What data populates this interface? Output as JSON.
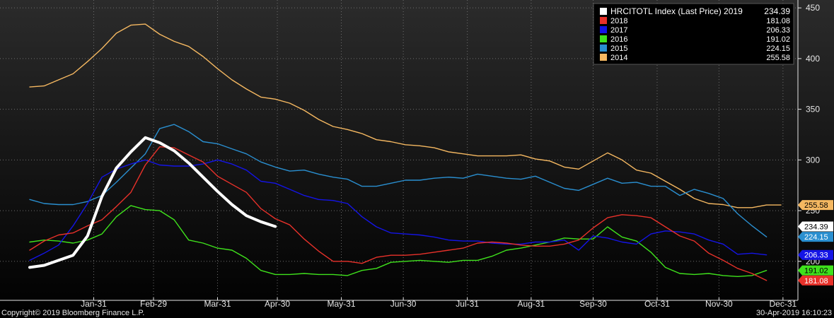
{
  "footer": {
    "copyright": "Copyright© 2019 Bloomberg Finance L.P.",
    "timestamp": "30-Apr-2019 16:10:23"
  },
  "legend": {
    "header": "HRCITOTL Index (Last Price)",
    "placement": "top-right"
  },
  "colors": {
    "background_top": "#2b2b2b",
    "background_bottom": "#000000",
    "grid": "#6e6e6e",
    "axis_text": "#e6e6e6",
    "legend_bg": "#000000"
  },
  "chart_data": {
    "type": "line",
    "grid": true,
    "ylim": [
      165,
      455
    ],
    "y_ticks": [
      200,
      250,
      300,
      350,
      400,
      450
    ],
    "y_tick_labels": [
      "200",
      "250",
      "300",
      "350",
      "400",
      "450"
    ],
    "x_range": [
      0,
      52
    ],
    "x_ticks": [
      4.43,
      8.57,
      13,
      17.14,
      21.57,
      25.86,
      30.29,
      34.71,
      39,
      43.43,
      47.71,
      52.14
    ],
    "x_tick_labels": [
      "Jan-31",
      "Feb-29",
      "Mar-31",
      "Apr-30",
      "May-31",
      "Jun-30",
      "Jul-31",
      "Aug-31",
      "Sep-30",
      "Oct-31",
      "Nov-30",
      "Dec-31"
    ],
    "series": [
      {
        "name": "2014",
        "color": "#f5b861",
        "last_value": "255.58",
        "width": 1.4,
        "x": [
          0,
          1,
          2,
          3,
          4,
          5,
          6,
          7,
          8,
          9,
          10,
          11,
          12,
          13,
          14,
          15,
          16,
          17,
          18,
          19,
          20,
          21,
          22,
          23,
          24,
          25,
          26,
          27,
          28,
          29,
          30,
          31,
          32,
          33,
          34,
          35,
          36,
          37,
          38,
          39,
          40,
          41,
          42,
          43,
          44,
          45,
          46,
          47,
          48,
          49,
          50,
          51,
          52
        ],
        "y": [
          372,
          373,
          379,
          385,
          397,
          410,
          425,
          433,
          434,
          424,
          417,
          412,
          402,
          390,
          379,
          370,
          362,
          360,
          356,
          349,
          340,
          333,
          330,
          326,
          320,
          318,
          315,
          314,
          312,
          308,
          306,
          304,
          304,
          304,
          305,
          301,
          299,
          293,
          291,
          299,
          307,
          300,
          290,
          287,
          279,
          271,
          262,
          257,
          256,
          253,
          253,
          255.58,
          255.58
        ]
      },
      {
        "name": "2015",
        "color": "#2a8fd0",
        "last_value": "224.15",
        "width": 1.4,
        "x": [
          0,
          1,
          2,
          3,
          4,
          5,
          6,
          7,
          8,
          9,
          10,
          11,
          12,
          13,
          14,
          15,
          16,
          17,
          18,
          19,
          20,
          21,
          22,
          23,
          24,
          25,
          26,
          27,
          28,
          29,
          30,
          31,
          32,
          33,
          34,
          35,
          36,
          37,
          38,
          39,
          40,
          41,
          42,
          43,
          44,
          45,
          46,
          47,
          48,
          49,
          50,
          51
        ],
        "y": [
          261,
          257,
          256,
          256,
          259,
          265,
          278,
          292,
          306,
          331,
          335,
          328,
          318,
          316,
          311,
          306,
          298,
          293,
          289,
          290,
          286,
          283,
          281,
          274,
          274,
          277,
          280,
          280,
          282,
          283,
          282,
          286,
          284,
          282,
          281,
          284,
          278,
          272,
          270,
          276,
          282,
          277,
          278,
          274,
          274,
          265,
          271,
          267,
          262,
          247,
          235,
          224.15
        ]
      },
      {
        "name": "2016",
        "color": "#3fe21c",
        "last_value": "191.02",
        "width": 1.4,
        "x": [
          0,
          1,
          2,
          3,
          4,
          5,
          6,
          7,
          8,
          9,
          10,
          11,
          12,
          13,
          14,
          15,
          16,
          17,
          18,
          19,
          20,
          21,
          22,
          23,
          24,
          25,
          26,
          27,
          28,
          29,
          30,
          31,
          32,
          33,
          34,
          35,
          36,
          37,
          38,
          39,
          40,
          41,
          42,
          43,
          44,
          45,
          46,
          47,
          48,
          49,
          50,
          51
        ],
        "y": [
          219,
          221,
          220,
          218,
          221,
          227,
          244,
          255,
          251,
          250,
          241,
          221,
          218,
          213,
          211,
          203,
          191,
          187,
          187,
          188,
          187,
          187,
          186,
          191,
          193,
          199,
          200,
          201,
          200,
          199,
          201,
          201,
          205,
          211,
          213,
          216,
          219,
          223,
          222,
          222,
          234,
          224,
          220,
          209,
          194,
          188,
          187,
          188,
          186,
          185,
          186,
          191.02
        ]
      },
      {
        "name": "2017",
        "color": "#1414e6",
        "last_value": "206.33",
        "width": 1.4,
        "x": [
          0,
          1,
          2,
          3,
          4,
          5,
          6,
          7,
          8,
          9,
          10,
          11,
          12,
          13,
          14,
          15,
          16,
          17,
          18,
          19,
          20,
          21,
          22,
          23,
          24,
          25,
          26,
          27,
          28,
          29,
          30,
          31,
          32,
          33,
          34,
          35,
          36,
          37,
          38,
          39,
          40,
          41,
          42,
          43,
          44,
          45,
          46,
          47,
          48,
          49,
          50,
          51
        ],
        "y": [
          201,
          208,
          216,
          235,
          257,
          283,
          291,
          296,
          300,
          295,
          294,
          294,
          296,
          300,
          296,
          290,
          279,
          277,
          271,
          265,
          261,
          260,
          257,
          244,
          234,
          228,
          227,
          226,
          224,
          221,
          220,
          220,
          218,
          217,
          217,
          219,
          219,
          221,
          211,
          225,
          223,
          219,
          217,
          227,
          230,
          229,
          227,
          221,
          217,
          207,
          208,
          206.33
        ]
      },
      {
        "name": "2018",
        "color": "#e8312a",
        "last_value": "181.08",
        "width": 1.4,
        "x": [
          0,
          1,
          2,
          3,
          4,
          5,
          6,
          7,
          8,
          9,
          10,
          11,
          12,
          13,
          14,
          15,
          16,
          17,
          18,
          19,
          20,
          21,
          22,
          23,
          24,
          25,
          26,
          27,
          28,
          29,
          30,
          31,
          32,
          33,
          34,
          35,
          36,
          37,
          38,
          39,
          40,
          41,
          42,
          43,
          44,
          45,
          46,
          47,
          48,
          49,
          50,
          51
        ],
        "y": [
          211,
          220,
          226,
          228,
          235,
          241,
          254,
          268,
          295,
          313,
          312,
          305,
          298,
          284,
          276,
          268,
          252,
          242,
          236,
          222,
          210,
          200,
          200,
          198,
          204,
          206,
          206,
          207,
          209,
          211,
          213,
          218,
          219,
          218,
          216,
          215,
          215,
          217,
          221,
          233,
          243,
          246,
          245,
          243,
          234,
          225,
          220,
          208,
          201,
          193,
          188,
          181.08
        ]
      },
      {
        "name": "2019",
        "color": "#ffffff",
        "last_value": "234.39",
        "width": 4,
        "x": [
          0,
          1,
          2,
          3,
          4,
          5,
          6,
          7,
          8,
          9,
          10,
          11,
          12,
          13,
          14,
          15,
          16,
          17
        ],
        "y": [
          194,
          196,
          201,
          206,
          225,
          264,
          292,
          308,
          322,
          317,
          309,
          297,
          283,
          269,
          256,
          245,
          239,
          234.39
        ]
      }
    ]
  }
}
